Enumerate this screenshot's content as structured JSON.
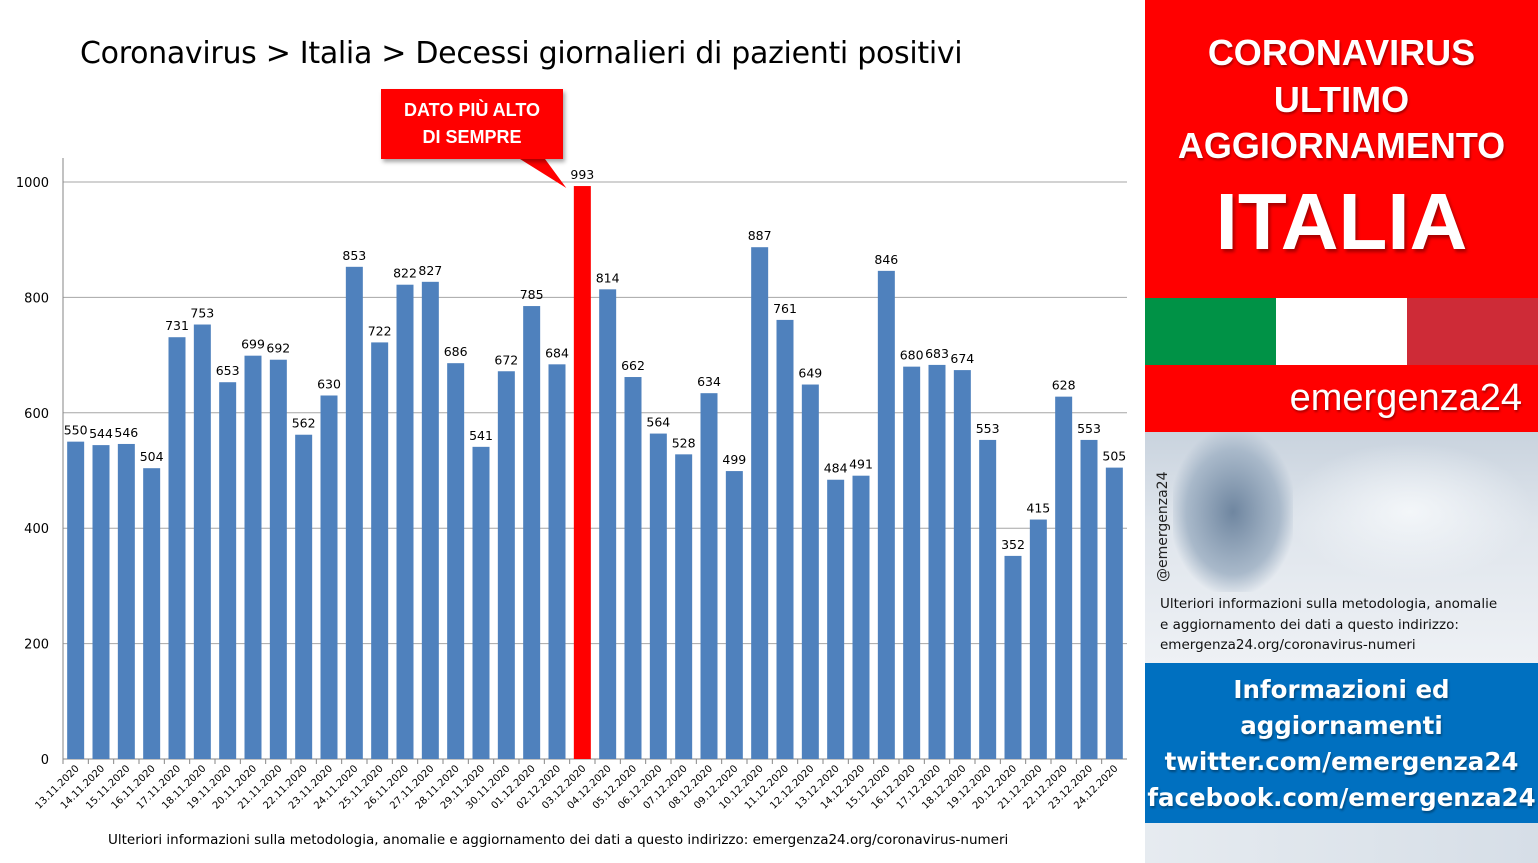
{
  "title": "Coronavirus > Italia > Decessi giornalieri di pazienti positivi",
  "callout": {
    "line1": "DATO PIÙ ALTO",
    "line2": "DI SEMPRE"
  },
  "footnote": "Ulteriori informazioni sulla metodologia, anomalie e aggiornamento dei dati a questo indirizzo: emergenza24.org/coronavirus-numeri",
  "panel": {
    "line1": "CORONAVIRUS",
    "line2": "ULTIMO",
    "line3": "AGGIORNAMENTO",
    "big": "ITALIA",
    "brand": "emergenza24",
    "handle": "@emergenza24",
    "info_lines": [
      "Ulteriori informazioni sulla metodologia, anomalie",
      "e aggiornamento dei dati a questo indirizzo:",
      "emergenza24.org/coronavirus-numeri"
    ],
    "blue_lines": [
      "Informazioni ed",
      "aggiornamenti",
      "twitter.com/emergenza24",
      "facebook.com/emergenza24"
    ],
    "colors": {
      "red": "#ff0000",
      "blue": "#0070c0",
      "flag_green": "#009246",
      "flag_white": "#ffffff",
      "flag_red": "#ce2b37"
    }
  },
  "chart_data": {
    "type": "bar",
    "categories": [
      "13.11.2020",
      "14.11.2020",
      "15.11.2020",
      "16.11.2020",
      "17.11.2020",
      "18.11.2020",
      "19.11.2020",
      "20.11.2020",
      "21.11.2020",
      "22.11.2020",
      "23.11.2020",
      "24.11.2020",
      "25.11.2020",
      "26.11.2020",
      "27.11.2020",
      "28.11.2020",
      "29.11.2020",
      "30.11.2020",
      "01.12.2020",
      "02.12.2020",
      "03.12.2020",
      "04.12.2020",
      "05.12.2020",
      "06.12.2020",
      "07.12.2020",
      "08.12.2020",
      "09.12.2020",
      "10.12.2020",
      "11.12.2020",
      "12.12.2020",
      "13.12.2020",
      "14.12.2020",
      "15.12.2020",
      "16.12.2020",
      "17.12.2020",
      "18.12.2020",
      "19.12.2020",
      "20.12.2020",
      "21.12.2020",
      "22.12.2020",
      "23.12.2020",
      "24.12.2020"
    ],
    "values": [
      550,
      544,
      546,
      504,
      731,
      753,
      653,
      699,
      692,
      562,
      630,
      853,
      722,
      822,
      827,
      686,
      541,
      672,
      785,
      684,
      993,
      814,
      662,
      564,
      528,
      634,
      499,
      887,
      761,
      649,
      484,
      491,
      846,
      680,
      683,
      674,
      553,
      352,
      415,
      628,
      553,
      505
    ],
    "highlight_index": 20,
    "bar_color": "#4f81bd",
    "highlight_color": "#ff0000",
    "yticks": [
      0,
      200,
      400,
      600,
      800,
      1000
    ],
    "ylim": [
      0,
      1040
    ],
    "grid": true,
    "legend": "none"
  }
}
